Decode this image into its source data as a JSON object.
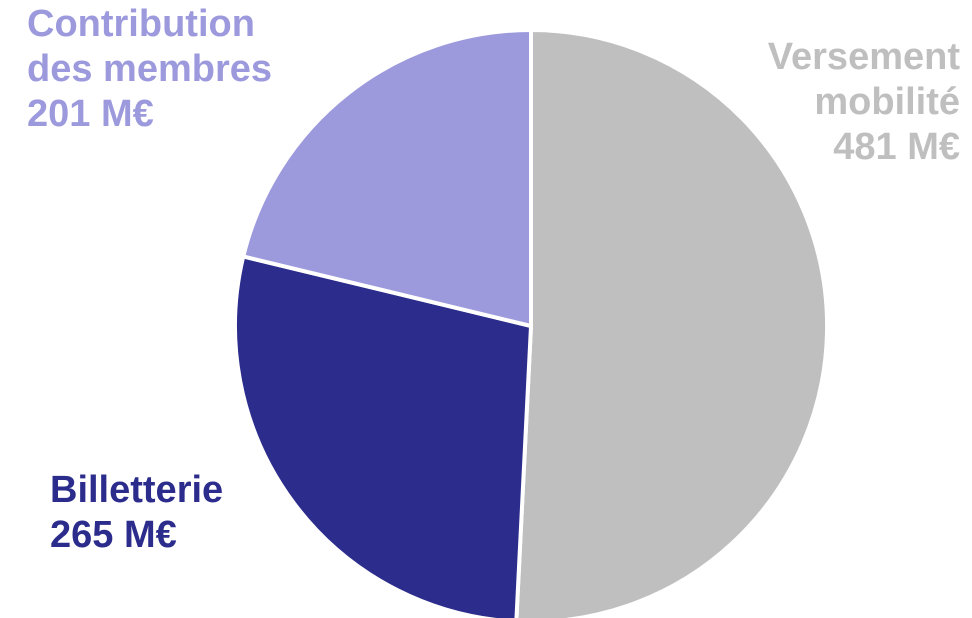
{
  "chart_data": {
    "type": "pie",
    "title": "",
    "unit": "M€",
    "slices": [
      {
        "label_lines": [
          "Versement",
          "mobilité"
        ],
        "value": 481,
        "value_text": "481 M€",
        "color": "#bfbfbf"
      },
      {
        "label_lines": [
          "Billetterie"
        ],
        "value": 265,
        "value_text": "265 M€",
        "color": "#2b2c8c"
      },
      {
        "label_lines": [
          "Contribution",
          "des membres"
        ],
        "value": 201,
        "value_text": "201 M€",
        "color": "#9c9add"
      }
    ],
    "start_angle": "top (12 o'clock)",
    "direction": "clockwise",
    "separator_color": "#ffffff"
  }
}
